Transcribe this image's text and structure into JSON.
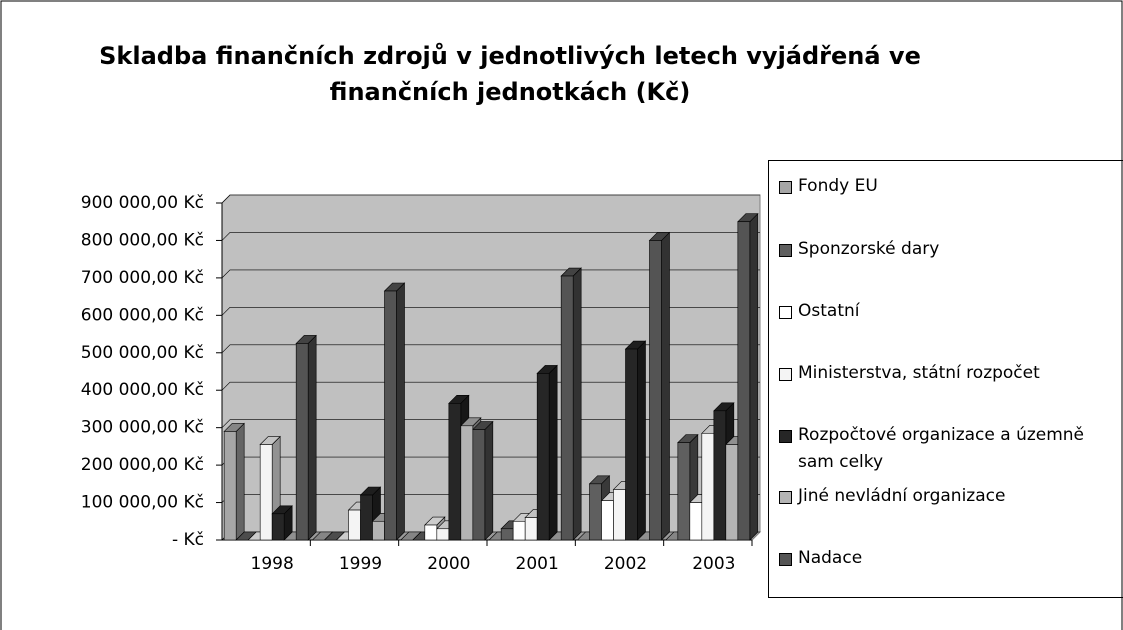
{
  "chart_data": {
    "type": "bar",
    "title": "Skladba finančních zdrojů v jednotlivých letech vyjádřená ve finančních jednotkách (Kč)",
    "categories": [
      "1998",
      "1999",
      "2000",
      "2001",
      "2002",
      "2003"
    ],
    "series": [
      {
        "name": "Fondy EU",
        "color": "#a6a6a6",
        "values": [
          290000,
          0,
          0,
          0,
          0,
          0
        ]
      },
      {
        "name": "Sponzorské dary",
        "color": "#5f5f5f",
        "values": [
          0,
          0,
          0,
          30000,
          150000,
          260000
        ]
      },
      {
        "name": "Ostatní",
        "color": "#ffffff",
        "values": [
          0,
          0,
          40000,
          50000,
          105000,
          100000
        ]
      },
      {
        "name": "Ministerstva, státní rozpočet",
        "color": "#f4f4f4",
        "values": [
          255000,
          80000,
          30000,
          60000,
          135000,
          285000
        ]
      },
      {
        "name": "Rozpočtové organizace a územně sam celky",
        "color": "#262626",
        "values": [
          70000,
          120000,
          365000,
          445000,
          510000,
          345000
        ]
      },
      {
        "name": "Jiné nevládní organizace",
        "color": "#b4b4b4",
        "values": [
          0,
          50000,
          305000,
          0,
          0,
          255000
        ]
      },
      {
        "name": "Nadace",
        "color": "#545454",
        "values": [
          525000,
          665000,
          295000,
          705000,
          800000,
          850000
        ]
      }
    ],
    "ylim": [
      0,
      900000
    ],
    "yticks": [
      {
        "value": 0,
        "label": "-   Kč"
      },
      {
        "value": 100000,
        "label": "100 000,00 Kč"
      },
      {
        "value": 200000,
        "label": "200 000,00 Kč"
      },
      {
        "value": 300000,
        "label": "300 000,00 Kč"
      },
      {
        "value": 400000,
        "label": "400 000,00 Kč"
      },
      {
        "value": 500000,
        "label": "500 000,00 Kč"
      },
      {
        "value": 600000,
        "label": "600 000,00 Kč"
      },
      {
        "value": 700000,
        "label": "700 000,00 Kč"
      },
      {
        "value": 800000,
        "label": "800 000,00 Kč"
      },
      {
        "value": 900000,
        "label": "900 000,00 Kč"
      }
    ],
    "grid": true
  }
}
